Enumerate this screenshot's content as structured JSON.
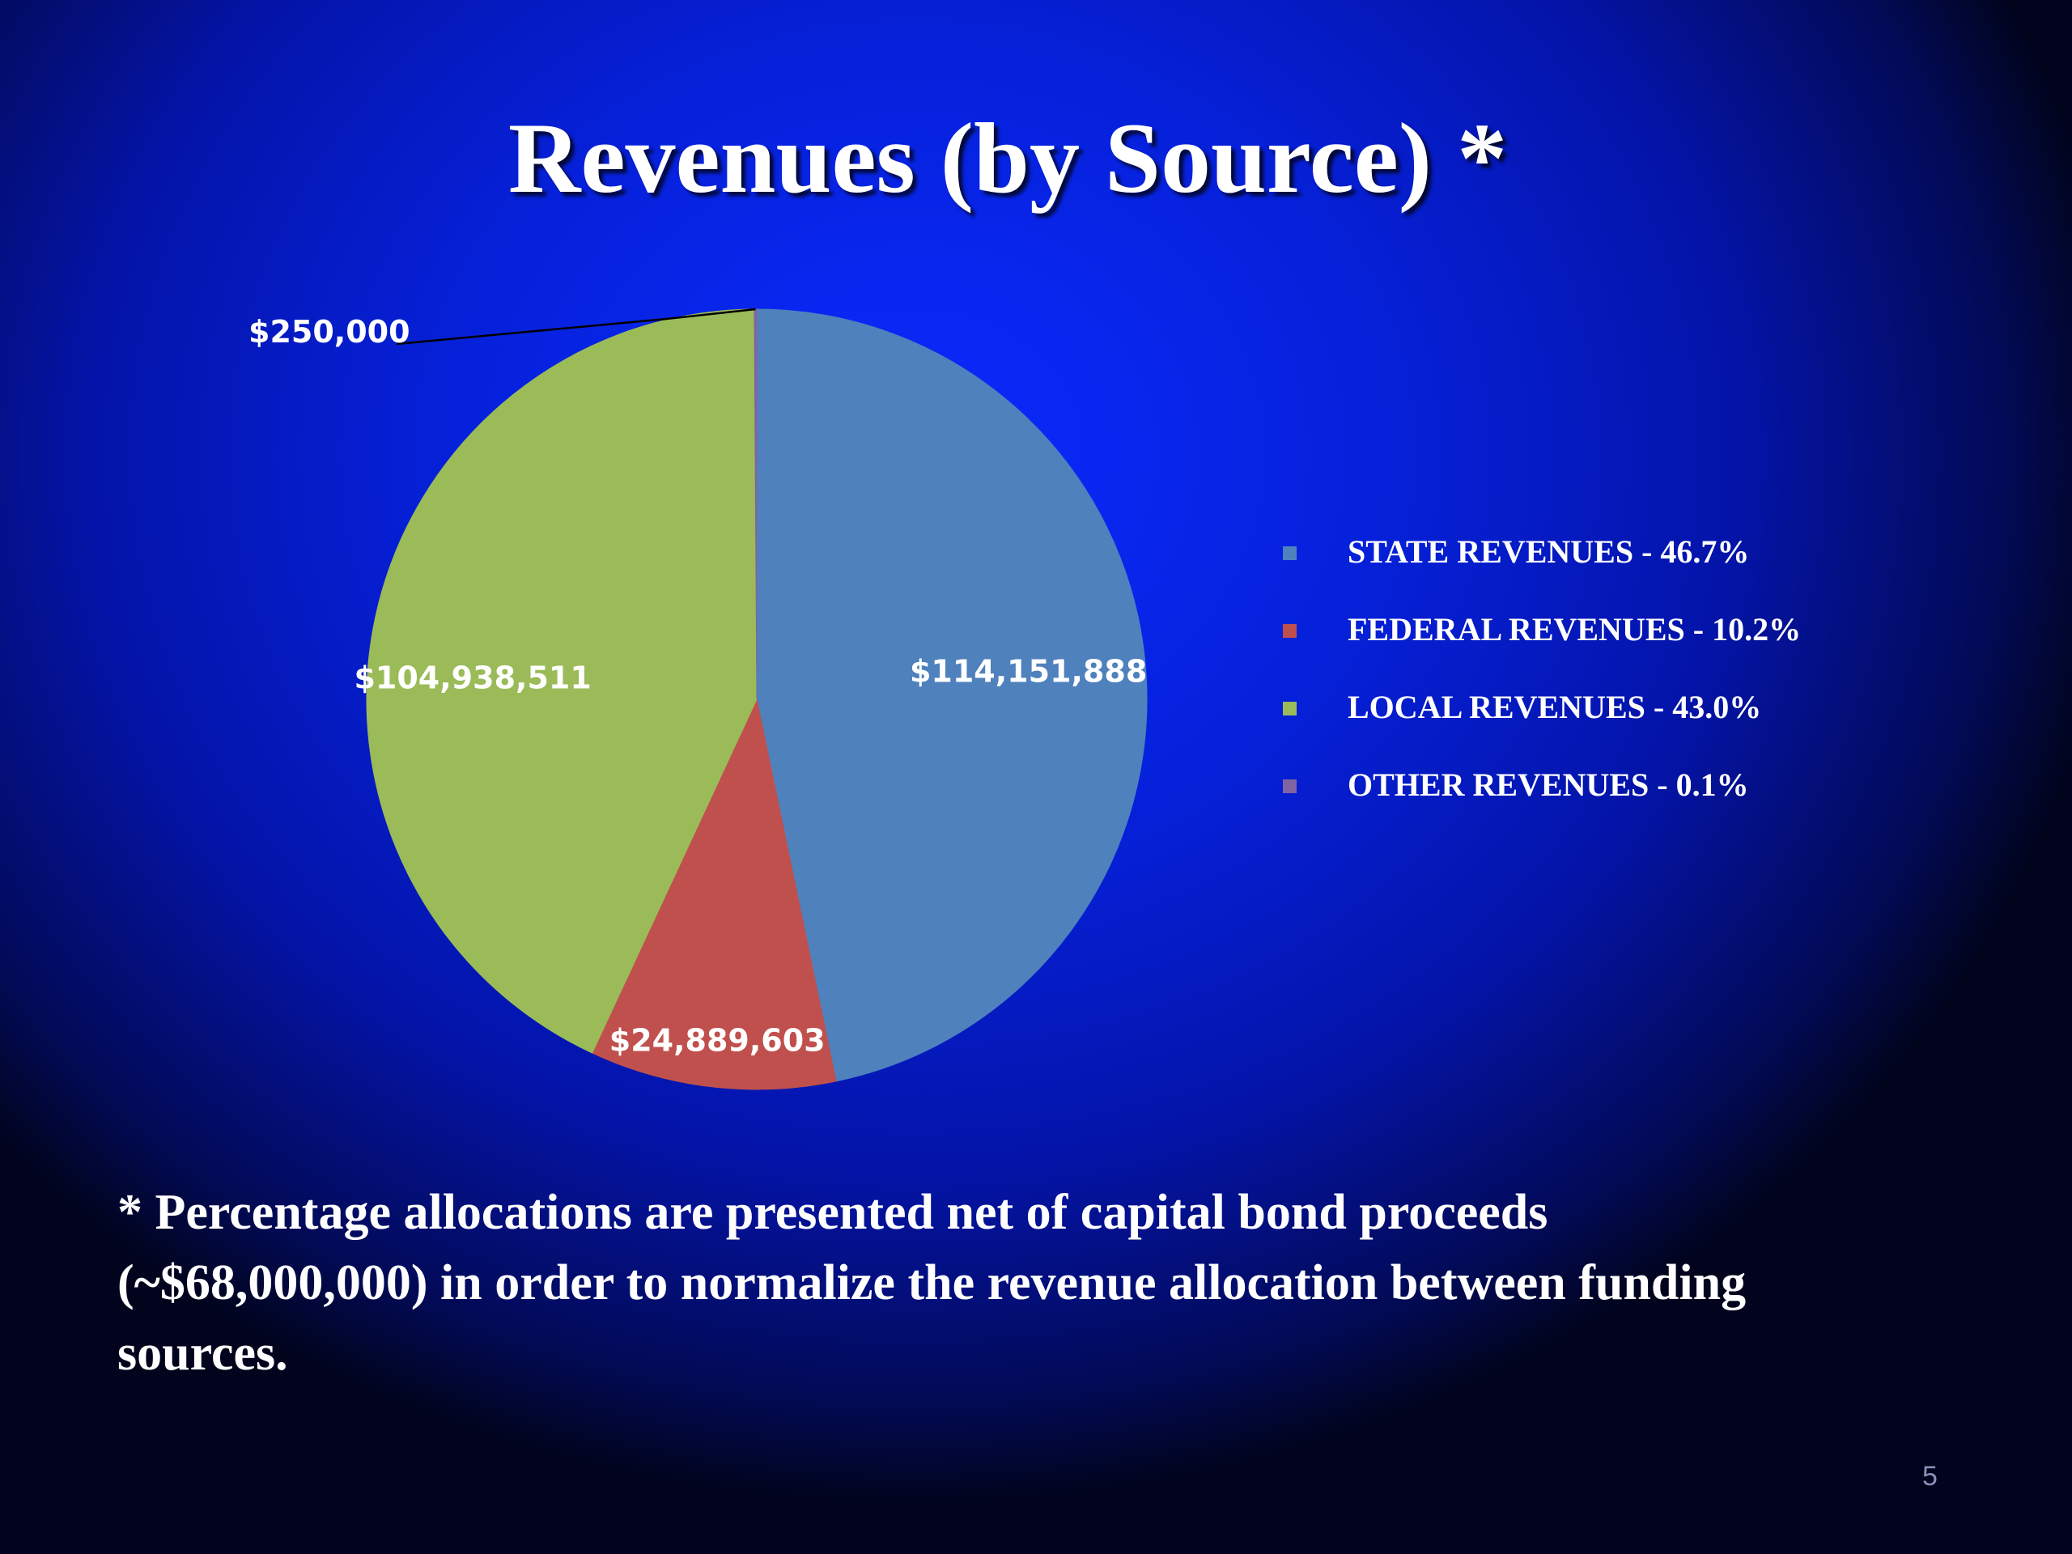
{
  "slide": {
    "title": "Revenues (by Source) *",
    "footnote": "* Percentage allocations are presented net of  capital bond proceeds (~$68,000,000) in order to normalize the revenue allocation between funding sources.",
    "page_number": "5"
  },
  "chart_data": {
    "type": "pie",
    "title": "",
    "start_angle_deg": 0,
    "direction": "clockwise",
    "slices": [
      {
        "name": "STATE  REVENUES",
        "legend_label": "STATE  REVENUES   - 46.7%",
        "value": 114151888,
        "percent": 46.7,
        "data_label": "$114,151,888",
        "color": "#4F81BD"
      },
      {
        "name": "FEDERAL  REVENUES",
        "legend_label": "FEDERAL  REVENUES   - 10.2%",
        "value": 24889603,
        "percent": 10.2,
        "data_label": "$24,889,603",
        "color": "#C0504D"
      },
      {
        "name": "LOCAL REVENUES",
        "legend_label": "LOCAL REVENUES   - 43.0%",
        "value": 104938511,
        "percent": 43.0,
        "data_label": "$104,938,511",
        "color": "#9BBB59"
      },
      {
        "name": "OTHER  REVENUES",
        "legend_label": "OTHER  REVENUES   - 0.1%",
        "value": 250000,
        "percent": 0.1,
        "data_label": "$250,000",
        "color": "#8064A2"
      }
    ],
    "legend_position": "right"
  }
}
